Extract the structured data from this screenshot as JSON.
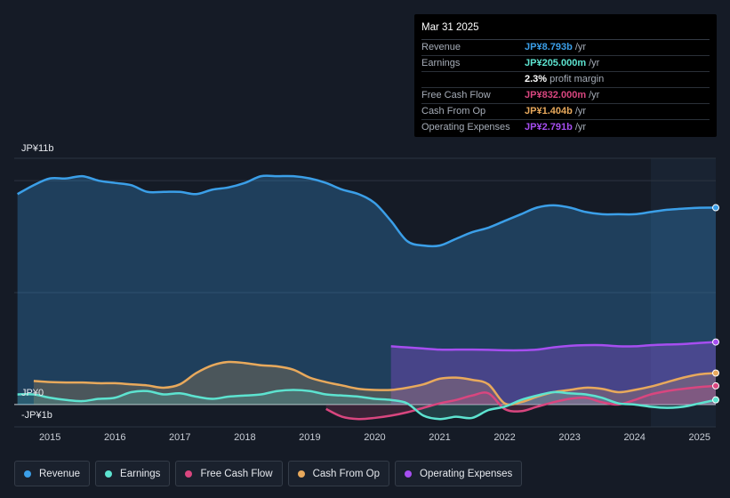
{
  "tooltip": {
    "date": "Mar 31 2025",
    "rows": [
      {
        "label": "Revenue",
        "value": "JP¥8.793b",
        "unit": "/yr",
        "color": "#3b9fe8"
      },
      {
        "label": "Earnings",
        "value": "JP¥205.000m",
        "unit": "/yr",
        "color": "#5de3d0"
      },
      {
        "label": "",
        "value": "2.3%",
        "unit": "profit margin",
        "color": "#ffffff"
      },
      {
        "label": "Free Cash Flow",
        "value": "JP¥832.000m",
        "unit": "/yr",
        "color": "#d9467f"
      },
      {
        "label": "Cash From Op",
        "value": "JP¥1.404b",
        "unit": "/yr",
        "color": "#e8a95c"
      },
      {
        "label": "Operating Expenses",
        "value": "JP¥2.791b",
        "unit": "/yr",
        "color": "#a64ef0"
      }
    ]
  },
  "legend": [
    {
      "label": "Revenue",
      "color": "#3b9fe8"
    },
    {
      "label": "Earnings",
      "color": "#5de3d0"
    },
    {
      "label": "Free Cash Flow",
      "color": "#d9467f"
    },
    {
      "label": "Cash From Op",
      "color": "#e8a95c"
    },
    {
      "label": "Operating Expenses",
      "color": "#a64ef0"
    }
  ],
  "chart_data": {
    "type": "area",
    "title": "",
    "y_axis_labels": {
      "top": "JP¥11b",
      "zero": "JP¥0",
      "bottom": "-JP¥1b"
    },
    "ylim": [
      -1,
      11
    ],
    "xlim": [
      2014.45,
      2025.25
    ],
    "x_ticks": [
      2015,
      2016,
      2017,
      2018,
      2019,
      2020,
      2021,
      2022,
      2023,
      2024,
      2025
    ],
    "forecast_shade_start": 2024.25,
    "series": [
      {
        "name": "Revenue",
        "color": "#3b9fe8",
        "points": [
          [
            2014.5,
            9.4
          ],
          [
            2014.75,
            9.8
          ],
          [
            2015.0,
            10.1
          ],
          [
            2015.25,
            10.1
          ],
          [
            2015.5,
            10.2
          ],
          [
            2015.75,
            10.0
          ],
          [
            2016.0,
            9.9
          ],
          [
            2016.25,
            9.8
          ],
          [
            2016.5,
            9.5
          ],
          [
            2016.75,
            9.5
          ],
          [
            2017.0,
            9.5
          ],
          [
            2017.25,
            9.4
          ],
          [
            2017.5,
            9.6
          ],
          [
            2017.75,
            9.7
          ],
          [
            2018.0,
            9.9
          ],
          [
            2018.25,
            10.2
          ],
          [
            2018.5,
            10.2
          ],
          [
            2018.75,
            10.2
          ],
          [
            2019.0,
            10.1
          ],
          [
            2019.25,
            9.9
          ],
          [
            2019.5,
            9.6
          ],
          [
            2019.75,
            9.4
          ],
          [
            2020.0,
            9.0
          ],
          [
            2020.25,
            8.2
          ],
          [
            2020.5,
            7.3
          ],
          [
            2020.75,
            7.1
          ],
          [
            2021.0,
            7.1
          ],
          [
            2021.25,
            7.4
          ],
          [
            2021.5,
            7.7
          ],
          [
            2021.75,
            7.9
          ],
          [
            2022.0,
            8.2
          ],
          [
            2022.25,
            8.5
          ],
          [
            2022.5,
            8.8
          ],
          [
            2022.75,
            8.9
          ],
          [
            2023.0,
            8.8
          ],
          [
            2023.25,
            8.6
          ],
          [
            2023.5,
            8.5
          ],
          [
            2023.75,
            8.5
          ],
          [
            2024.0,
            8.5
          ],
          [
            2024.25,
            8.6
          ],
          [
            2024.5,
            8.7
          ],
          [
            2024.75,
            8.75
          ],
          [
            2025.0,
            8.79
          ],
          [
            2025.25,
            8.793
          ]
        ]
      },
      {
        "name": "Operating Expenses",
        "color": "#a64ef0",
        "points": [
          [
            2020.25,
            2.6
          ],
          [
            2020.5,
            2.55
          ],
          [
            2020.75,
            2.5
          ],
          [
            2021.0,
            2.45
          ],
          [
            2021.25,
            2.45
          ],
          [
            2021.5,
            2.45
          ],
          [
            2021.75,
            2.44
          ],
          [
            2022.0,
            2.42
          ],
          [
            2022.25,
            2.42
          ],
          [
            2022.5,
            2.45
          ],
          [
            2022.75,
            2.55
          ],
          [
            2023.0,
            2.62
          ],
          [
            2023.25,
            2.65
          ],
          [
            2023.5,
            2.65
          ],
          [
            2023.75,
            2.6
          ],
          [
            2024.0,
            2.6
          ],
          [
            2024.25,
            2.65
          ],
          [
            2024.5,
            2.68
          ],
          [
            2024.75,
            2.7
          ],
          [
            2025.0,
            2.75
          ],
          [
            2025.25,
            2.791
          ]
        ]
      },
      {
        "name": "Cash From Op",
        "color": "#e8a95c",
        "points": [
          [
            2014.75,
            1.05
          ],
          [
            2015.0,
            1.0
          ],
          [
            2015.25,
            0.98
          ],
          [
            2015.5,
            0.98
          ],
          [
            2015.75,
            0.95
          ],
          [
            2016.0,
            0.95
          ],
          [
            2016.25,
            0.9
          ],
          [
            2016.5,
            0.85
          ],
          [
            2016.75,
            0.75
          ],
          [
            2017.0,
            0.9
          ],
          [
            2017.25,
            1.4
          ],
          [
            2017.5,
            1.75
          ],
          [
            2017.75,
            1.9
          ],
          [
            2018.0,
            1.85
          ],
          [
            2018.25,
            1.75
          ],
          [
            2018.5,
            1.7
          ],
          [
            2018.75,
            1.55
          ],
          [
            2019.0,
            1.2
          ],
          [
            2019.25,
            1.0
          ],
          [
            2019.5,
            0.85
          ],
          [
            2019.75,
            0.7
          ],
          [
            2020.0,
            0.65
          ],
          [
            2020.25,
            0.65
          ],
          [
            2020.5,
            0.75
          ],
          [
            2020.75,
            0.9
          ],
          [
            2021.0,
            1.15
          ],
          [
            2021.25,
            1.2
          ],
          [
            2021.5,
            1.1
          ],
          [
            2021.75,
            0.9
          ],
          [
            2022.0,
            0.05
          ],
          [
            2022.25,
            0.1
          ],
          [
            2022.5,
            0.35
          ],
          [
            2022.75,
            0.55
          ],
          [
            2023.0,
            0.65
          ],
          [
            2023.25,
            0.75
          ],
          [
            2023.5,
            0.7
          ],
          [
            2023.75,
            0.55
          ],
          [
            2024.0,
            0.65
          ],
          [
            2024.25,
            0.8
          ],
          [
            2024.5,
            1.0
          ],
          [
            2024.75,
            1.2
          ],
          [
            2025.0,
            1.35
          ],
          [
            2025.25,
            1.404
          ]
        ]
      },
      {
        "name": "Free Cash Flow",
        "color": "#d9467f",
        "points": [
          [
            2019.25,
            -0.2
          ],
          [
            2019.5,
            -0.55
          ],
          [
            2019.75,
            -0.65
          ],
          [
            2020.0,
            -0.6
          ],
          [
            2020.25,
            -0.5
          ],
          [
            2020.5,
            -0.35
          ],
          [
            2020.75,
            -0.15
          ],
          [
            2021.0,
            0.05
          ],
          [
            2021.25,
            0.2
          ],
          [
            2021.5,
            0.4
          ],
          [
            2021.75,
            0.5
          ],
          [
            2022.0,
            -0.2
          ],
          [
            2022.25,
            -0.3
          ],
          [
            2022.5,
            -0.1
          ],
          [
            2022.75,
            0.1
          ],
          [
            2023.0,
            0.25
          ],
          [
            2023.25,
            0.3
          ],
          [
            2023.5,
            0.1
          ],
          [
            2023.75,
            0.0
          ],
          [
            2024.0,
            0.2
          ],
          [
            2024.25,
            0.45
          ],
          [
            2024.5,
            0.6
          ],
          [
            2024.75,
            0.7
          ],
          [
            2025.0,
            0.78
          ],
          [
            2025.25,
            0.832
          ]
        ]
      },
      {
        "name": "Earnings",
        "color": "#5de3d0",
        "points": [
          [
            2014.5,
            0.45
          ],
          [
            2014.75,
            0.45
          ],
          [
            2015.0,
            0.3
          ],
          [
            2015.25,
            0.2
          ],
          [
            2015.5,
            0.15
          ],
          [
            2015.75,
            0.25
          ],
          [
            2016.0,
            0.3
          ],
          [
            2016.25,
            0.55
          ],
          [
            2016.5,
            0.6
          ],
          [
            2016.75,
            0.45
          ],
          [
            2017.0,
            0.5
          ],
          [
            2017.25,
            0.35
          ],
          [
            2017.5,
            0.25
          ],
          [
            2017.75,
            0.35
          ],
          [
            2018.0,
            0.4
          ],
          [
            2018.25,
            0.45
          ],
          [
            2018.5,
            0.6
          ],
          [
            2018.75,
            0.65
          ],
          [
            2019.0,
            0.6
          ],
          [
            2019.25,
            0.45
          ],
          [
            2019.5,
            0.4
          ],
          [
            2019.75,
            0.35
          ],
          [
            2020.0,
            0.25
          ],
          [
            2020.25,
            0.2
          ],
          [
            2020.5,
            0.05
          ],
          [
            2020.75,
            -0.5
          ],
          [
            2021.0,
            -0.65
          ],
          [
            2021.25,
            -0.55
          ],
          [
            2021.5,
            -0.6
          ],
          [
            2021.75,
            -0.25
          ],
          [
            2022.0,
            -0.1
          ],
          [
            2022.25,
            0.2
          ],
          [
            2022.5,
            0.4
          ],
          [
            2022.75,
            0.55
          ],
          [
            2023.0,
            0.5
          ],
          [
            2023.25,
            0.45
          ],
          [
            2023.5,
            0.3
          ],
          [
            2023.75,
            0.05
          ],
          [
            2024.0,
            0.0
          ],
          [
            2024.25,
            -0.1
          ],
          [
            2024.5,
            -0.15
          ],
          [
            2024.75,
            -0.1
          ],
          [
            2025.0,
            0.05
          ],
          [
            2025.25,
            0.205
          ]
        ]
      }
    ]
  }
}
